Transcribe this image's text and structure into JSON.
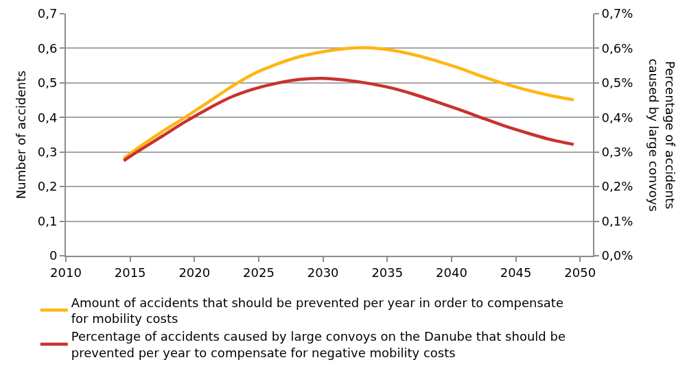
{
  "chart_data": {
    "type": "line",
    "ylabel": "Number of accidents",
    "y2label": "Percentage of accidents caused by large convoys",
    "x": [
      2014.5,
      2015.7,
      2017.5,
      2019.3,
      2021.1,
      2022.8,
      2024.6,
      2026.4,
      2028.2,
      2030,
      2031.7,
      2033.3,
      2035.1,
      2036.9,
      2038.7,
      2040.5,
      2042.2,
      2044,
      2045.8,
      2047.6,
      2049.5
    ],
    "series": [
      {
        "name": "Amount of accidents that should be prevented per year in order to compensate for mobility costs",
        "color": "#ffb612",
        "values": [
          0.281,
          0.314,
          0.359,
          0.401,
          0.445,
          0.487,
          0.526,
          0.554,
          0.576,
          0.59,
          0.599,
          0.602,
          0.596,
          0.583,
          0.565,
          0.544,
          0.521,
          0.499,
          0.48,
          0.464,
          0.451
        ]
      },
      {
        "name": "Percentage of accidents caused by large convoys on the Danube that should be prevented per year to compensate for negative mobility costs",
        "color": "#c8322f",
        "axis": "y2",
        "values": [
          0.275,
          0.304,
          0.346,
          0.388,
          0.426,
          0.458,
          0.482,
          0.499,
          0.51,
          0.513,
          0.508,
          0.5,
          0.487,
          0.469,
          0.447,
          0.424,
          0.401,
          0.377,
          0.356,
          0.337,
          0.322
        ]
      }
    ],
    "xlim": [
      2010,
      2051
    ],
    "xticks": [
      2010,
      2015,
      2020,
      2025,
      2030,
      2035,
      2040,
      2045,
      2050
    ],
    "ylim": [
      0,
      0.7
    ],
    "yticks": [
      0,
      {
        "value": 0.1,
        "label": "0,1"
      },
      {
        "value": 0.2,
        "label": "0,2"
      },
      {
        "value": 0.3,
        "label": "0,3"
      },
      {
        "value": 0.4,
        "label": "0,4"
      },
      {
        "value": 0.5,
        "label": "0,5"
      },
      {
        "value": 0.6,
        "label": "0,6"
      },
      {
        "value": 0.7,
        "label": "0,7"
      }
    ],
    "y2lim": [
      0,
      0.7
    ],
    "y2ticks": [
      {
        "value": 0,
        "label": "0,0%"
      },
      {
        "value": 0.1,
        "label": "0,1%"
      },
      {
        "value": 0.2,
        "label": "0,2%"
      },
      {
        "value": 0.3,
        "label": "0,3%"
      },
      {
        "value": 0.4,
        "label": "0,4%"
      },
      {
        "value": 0.5,
        "label": "0,5%"
      },
      {
        "value": 0.6,
        "label": "0,6%"
      },
      {
        "value": 0.7,
        "label": "0,7%"
      }
    ],
    "grid": "y",
    "legend": "bottom",
    "marker": "none",
    "line_style": "solid"
  }
}
